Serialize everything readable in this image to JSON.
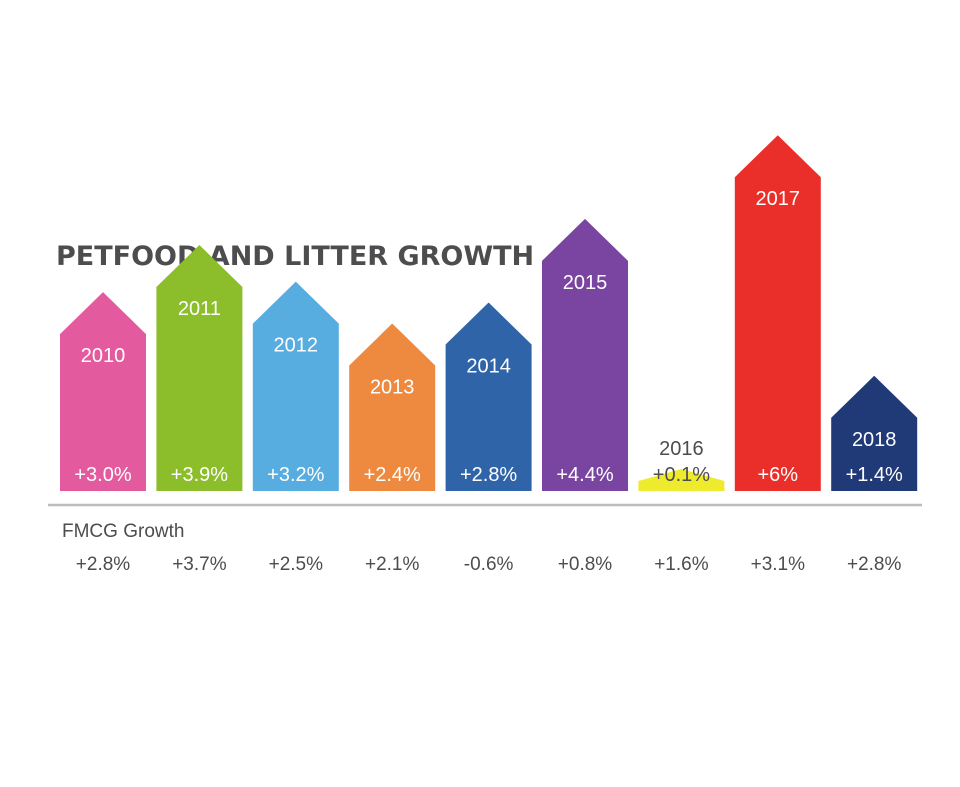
{
  "chart_data": {
    "type": "bar",
    "title": "PETFOOD AND LITTER GROWTH",
    "categories": [
      "2010",
      "2011",
      "2012",
      "2013",
      "2014",
      "2015",
      "2016",
      "2017",
      "2018"
    ],
    "series": [
      {
        "values": [
          3.0,
          3.9,
          3.2,
          2.4,
          2.8,
          4.4,
          0.1,
          6.0,
          1.4
        ],
        "labels": [
          "+3.0%",
          "+3.9%",
          "+3.2%",
          "+2.4%",
          "+2.8%",
          "+4.4%",
          "+0.1%",
          "+6%",
          "+1.4%"
        ],
        "colors": [
          "#e45a9e",
          "#8cbd2b",
          "#57ade0",
          "#ee8a3f",
          "#2f64a8",
          "#7a45a0",
          "#eeea2e",
          "#ea2f2a",
          "#203a78"
        ]
      }
    ],
    "fmcg": {
      "label": "FMCG Growth",
      "values": [
        2.8,
        3.7,
        2.5,
        2.1,
        -0.6,
        0.8,
        1.6,
        3.1,
        2.8
      ],
      "labels": [
        "+2.8%",
        "+3.7%",
        "+2.5%",
        "+2.1%",
        "-0.6%",
        "+0.8%",
        "+1.6%",
        "+3.1%",
        "+2.8%"
      ]
    },
    "ylim": [
      0,
      6
    ],
    "grid": false,
    "legend": "none"
  }
}
